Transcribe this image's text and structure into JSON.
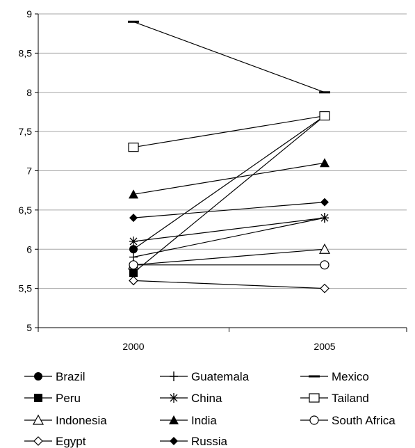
{
  "chart_data": {
    "type": "line",
    "x": [
      "2000",
      "2005"
    ],
    "ylim": [
      5,
      9
    ],
    "yticks": [
      "5",
      "5,5",
      "6",
      "6,5",
      "7",
      "7,5",
      "8",
      "8,5",
      "9"
    ],
    "grid": true,
    "legend_position": "bottom",
    "series": [
      {
        "name": "Brazil",
        "marker": "filled-circle",
        "values": [
          6.0,
          7.7
        ]
      },
      {
        "name": "Guatemala",
        "marker": "plus",
        "values": [
          5.9,
          6.4
        ]
      },
      {
        "name": "Mexico",
        "marker": "dash",
        "values": [
          8.9,
          8.0
        ]
      },
      {
        "name": "Peru",
        "marker": "filled-square",
        "values": [
          5.7,
          7.7
        ]
      },
      {
        "name": "China",
        "marker": "star",
        "values": [
          6.1,
          6.4
        ]
      },
      {
        "name": "Tailand",
        "marker": "open-square",
        "values": [
          7.3,
          7.7
        ]
      },
      {
        "name": "Indonesia",
        "marker": "open-triangle",
        "values": [
          5.8,
          6.0
        ]
      },
      {
        "name": "India",
        "marker": "filled-triangle",
        "values": [
          6.7,
          7.1
        ]
      },
      {
        "name": "South Africa",
        "marker": "open-circle",
        "values": [
          5.8,
          5.8
        ]
      },
      {
        "name": "Egypt",
        "marker": "open-diamond",
        "values": [
          5.6,
          5.5
        ]
      },
      {
        "name": "Russia",
        "marker": "filled-diamond",
        "values": [
          6.4,
          6.6
        ]
      }
    ]
  },
  "colors": {
    "line": "#000000",
    "grid": "#a6a6a6",
    "axis": "#000000"
  }
}
